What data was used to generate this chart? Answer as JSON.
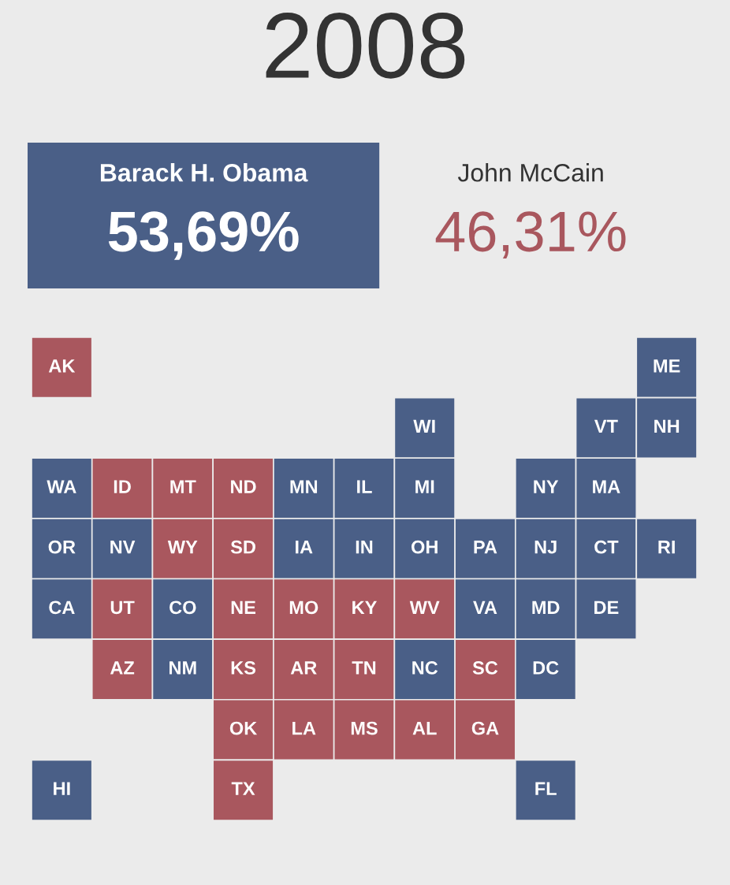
{
  "chart_data": [
    {
      "type": "other",
      "title": "2008",
      "categories": [
        "Barack H. Obama",
        "John McCain"
      ],
      "values": [
        53.69,
        46.31
      ],
      "value_labels": [
        "53,69%",
        "46,31%"
      ],
      "colors": [
        "#4a5f87",
        "#a9575e"
      ]
    },
    {
      "type": "other",
      "cell_labels": [
        [
          "AK",
          null,
          null,
          null,
          null,
          null,
          null,
          null,
          null,
          null,
          "ME"
        ],
        [
          null,
          null,
          null,
          null,
          null,
          null,
          "WI",
          null,
          null,
          "VT",
          "NH"
        ],
        [
          "WA",
          "ID",
          "MT",
          "ND",
          "MN",
          "IL",
          "MI",
          null,
          "NY",
          "MA",
          null
        ],
        [
          "OR",
          "NV",
          "WY",
          "SD",
          "IA",
          "IN",
          "OH",
          "PA",
          "NJ",
          "CT",
          "RI"
        ],
        [
          "CA",
          "UT",
          "CO",
          "NE",
          "MO",
          "KY",
          "WV",
          "VA",
          "MD",
          "DE",
          null
        ],
        [
          null,
          "AZ",
          "NM",
          "KS",
          "AR",
          "TN",
          "NC",
          "SC",
          "DC",
          null,
          null
        ],
        [
          null,
          null,
          null,
          "OK",
          "LA",
          "MS",
          "AL",
          "GA",
          null,
          null,
          null
        ],
        [
          "HI",
          null,
          null,
          "TX",
          null,
          null,
          null,
          null,
          "FL",
          null,
          null
        ]
      ],
      "colors": [
        [
          "#a9575e",
          null,
          null,
          null,
          null,
          null,
          null,
          null,
          null,
          null,
          "#4a5f87"
        ],
        [
          null,
          null,
          null,
          null,
          null,
          null,
          "#4a5f87",
          null,
          null,
          "#4a5f87",
          "#4a5f87"
        ],
        [
          "#4a5f87",
          "#a9575e",
          "#a9575e",
          "#a9575e",
          "#4a5f87",
          "#4a5f87",
          "#4a5f87",
          null,
          "#4a5f87",
          "#4a5f87",
          null
        ],
        [
          "#4a5f87",
          "#4a5f87",
          "#a9575e",
          "#a9575e",
          "#4a5f87",
          "#4a5f87",
          "#4a5f87",
          "#4a5f87",
          "#4a5f87",
          "#4a5f87",
          "#4a5f87"
        ],
        [
          "#4a5f87",
          "#a9575e",
          "#4a5f87",
          "#a9575e",
          "#a9575e",
          "#a9575e",
          "#a9575e",
          "#4a5f87",
          "#4a5f87",
          "#4a5f87",
          null
        ],
        [
          null,
          "#a9575e",
          "#4a5f87",
          "#a9575e",
          "#a9575e",
          "#a9575e",
          "#4a5f87",
          "#a9575e",
          "#4a5f87",
          null,
          null
        ],
        [
          null,
          null,
          null,
          "#a9575e",
          "#a9575e",
          "#a9575e",
          "#a9575e",
          "#a9575e",
          null,
          null,
          null
        ],
        [
          "#4a5f87",
          null,
          null,
          "#a9575e",
          null,
          null,
          null,
          null,
          "#4a5f87",
          null,
          null
        ]
      ]
    }
  ]
}
